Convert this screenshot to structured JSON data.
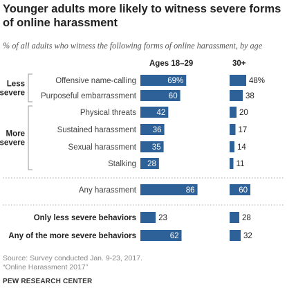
{
  "title": "Younger adults more likely to witness severe forms of online harassment",
  "subtitle": "% of all adults who witness the following forms of online harassment, by age",
  "chart_data": {
    "type": "bar",
    "series": [
      {
        "name": "Ages 18–29",
        "values": [
          69,
          60,
          42,
          36,
          35,
          28,
          86,
          23,
          62
        ]
      },
      {
        "name": "30+",
        "values": [
          48,
          38,
          20,
          17,
          14,
          11,
          60,
          28,
          32
        ]
      }
    ],
    "categories": [
      "Offensive name-calling",
      "Purposeful embarrassment",
      "Physical threats",
      "Sustained harassment",
      "Sexual harassment",
      "Stalking",
      "Any harassment",
      "Only less severe behaviors",
      "Any of the more severe behaviors"
    ],
    "value_labels": [
      [
        "69%",
        "60",
        "42",
        "36",
        "35",
        "28",
        "86",
        "23",
        "62"
      ],
      [
        "48%",
        "38",
        "20",
        "17",
        "14",
        "11",
        "60",
        "28",
        "32"
      ]
    ],
    "groups": [
      {
        "label": "Less severe",
        "members": [
          0,
          1
        ]
      },
      {
        "label": "More severe",
        "members": [
          2,
          3,
          4,
          5
        ]
      }
    ],
    "bold_categories": [
      7,
      8
    ],
    "bar_color": "#2f6199"
  },
  "footer": {
    "source": "Source: Survey conducted Jan. 9-23, 2017.",
    "report": "“Online Harassment 2017”",
    "brand": "PEW RESEARCH CENTER"
  }
}
